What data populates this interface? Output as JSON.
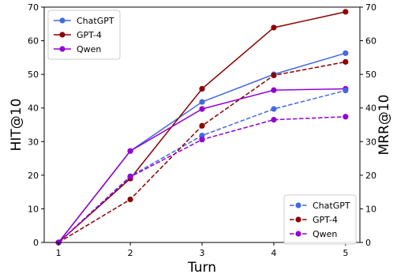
{
  "chart_data": {
    "type": "line",
    "x": [
      1,
      2,
      3,
      4,
      5
    ],
    "xlabel": "Turn",
    "ylabel_left": "HIT@10",
    "ylabel_right": "MRR@10",
    "ylim_left": [
      0,
      70
    ],
    "ylim_right": [
      0,
      70
    ],
    "xticks": [
      "1",
      "2",
      "3",
      "4",
      "5"
    ],
    "yticks_left": [
      "0",
      "10",
      "20",
      "30",
      "40",
      "50",
      "60",
      "70"
    ],
    "yticks_right": [
      "0",
      "10",
      "20",
      "30",
      "40",
      "50",
      "60",
      "70"
    ],
    "grid": false,
    "legend_left": {
      "placement": "top-left",
      "entries": [
        {
          "name": "ChatGPT",
          "color": "#4169e1",
          "style": "solid"
        },
        {
          "name": "GPT-4",
          "color": "#8b0000",
          "style": "solid"
        },
        {
          "name": "Qwen",
          "color": "#9400d3",
          "style": "solid"
        }
      ]
    },
    "legend_right": {
      "placement": "bottom-right",
      "entries": [
        {
          "name": "ChatGPT",
          "color": "#4169e1",
          "style": "dashed"
        },
        {
          "name": "GPT-4",
          "color": "#8b0000",
          "style": "dashed"
        },
        {
          "name": "Qwen",
          "color": "#9400d3",
          "style": "dashed"
        }
      ]
    },
    "series": [
      {
        "name": "ChatGPT",
        "metric": "HIT@10",
        "axis": "left",
        "color": "#4169e1",
        "style": "solid",
        "values": [
          0,
          27.2,
          41.8,
          50.0,
          56.3
        ]
      },
      {
        "name": "GPT-4",
        "metric": "HIT@10",
        "axis": "left",
        "color": "#8b0000",
        "style": "solid",
        "values": [
          0,
          19.0,
          45.7,
          63.9,
          68.6
        ]
      },
      {
        "name": "Qwen",
        "metric": "HIT@10",
        "axis": "left",
        "color": "#9400d3",
        "style": "solid",
        "values": [
          0,
          27.2,
          39.7,
          45.3,
          45.7
        ]
      },
      {
        "name": "ChatGPT",
        "metric": "MRR@10",
        "axis": "right",
        "color": "#4169e1",
        "style": "dashed",
        "values": [
          0,
          19.7,
          31.8,
          39.7,
          45.2
        ]
      },
      {
        "name": "GPT-4",
        "metric": "MRR@10",
        "axis": "right",
        "color": "#8b0000",
        "style": "dashed",
        "values": [
          0,
          12.8,
          34.7,
          49.7,
          53.7
        ]
      },
      {
        "name": "Qwen",
        "metric": "MRR@10",
        "axis": "right",
        "color": "#9400d3",
        "style": "dashed",
        "values": [
          0,
          19.5,
          30.6,
          36.5,
          37.4
        ]
      }
    ]
  }
}
